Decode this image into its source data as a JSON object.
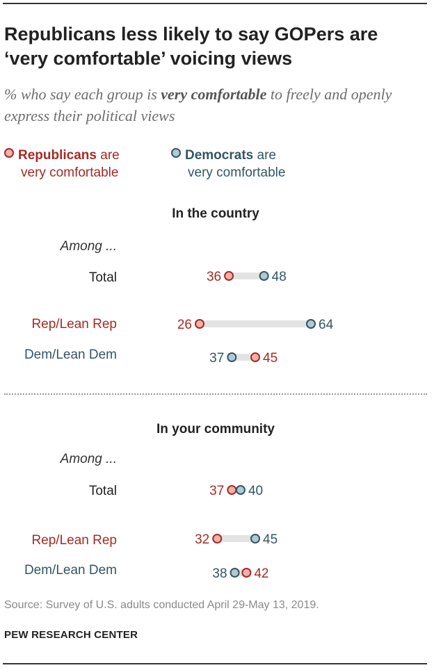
{
  "title": "Republicans less likely to say GOPers are ‘very comfortable’ voicing views",
  "subtitle": {
    "prefix": "% who say each group is ",
    "emphasis": "very comfortable",
    "suffix": " to freely and openly express their political views"
  },
  "legend": {
    "rep_bold": "Republicans",
    "rep_rest1": " are",
    "rep_rest2": "very comfortable",
    "dem_bold": "Democrats",
    "dem_rest1": " are",
    "dem_rest2": "very comfortable"
  },
  "colors": {
    "rep": "#a52a25",
    "rep_fill": "#f1b1a9",
    "dem": "#335564",
    "dem_fill": "#b3c8d3",
    "bar": "#e3e3e3",
    "among_color": "#333333"
  },
  "source": "Source: Survey of U.S. adults conducted April 29-May 13, 2019.",
  "brand": "PEW RESEARCH CENTER",
  "chart_data": {
    "type": "dot",
    "xlim": [
      20,
      70
    ],
    "panels": [
      {
        "title": "In the country",
        "among": "Among ...",
        "rows": [
          {
            "label": "Total",
            "label_color": "#222222",
            "rep": 36,
            "dem": 48
          },
          {
            "label": "Rep/Lean Rep",
            "label_color": "#a52a25",
            "rep": 26,
            "dem": 64
          },
          {
            "label": "Dem/Lean Dem",
            "label_color": "#335564",
            "rep": 45,
            "dem": 37
          }
        ]
      },
      {
        "title": "In your community",
        "among": "Among ...",
        "rows": [
          {
            "label": "Total",
            "label_color": "#222222",
            "rep": 37,
            "dem": 40
          },
          {
            "label": "Rep/Lean Rep",
            "label_color": "#a52a25",
            "rep": 32,
            "dem": 45
          },
          {
            "label": "Dem/Lean Dem",
            "label_color": "#335564",
            "rep": 42,
            "dem": 38
          }
        ]
      }
    ]
  }
}
